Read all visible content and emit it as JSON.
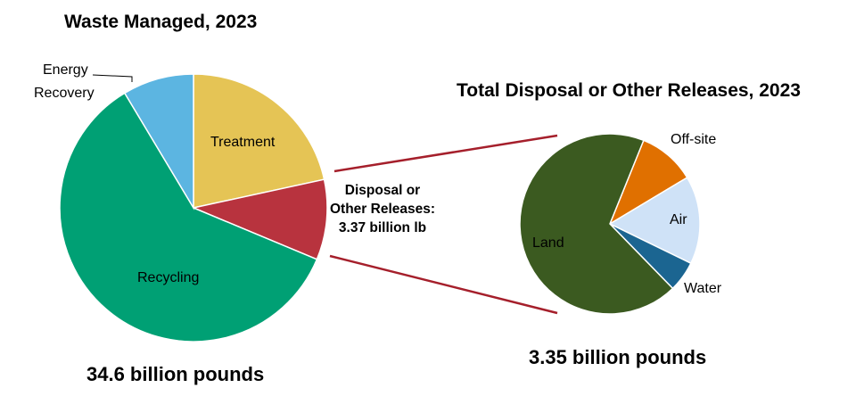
{
  "chart_data": [
    {
      "type": "pie",
      "title": "Waste Managed, 2023",
      "total_label": "34.6 billion pounds",
      "categories": [
        "Treatment",
        "Disposal or Other Releases",
        "Recycling",
        "Energy Recovery"
      ],
      "values": [
        21.6,
        9.7,
        60.1,
        8.6
      ],
      "unit": "percent of total",
      "colors": [
        "#e5c455",
        "#b8333e",
        "#00a074",
        "#5cb5e1"
      ],
      "labels": {
        "treatment": "Treatment",
        "recycling": "Recycling",
        "energy_recovery": [
          "Energy",
          "Recovery"
        ]
      },
      "callout": [
        "Disposal or",
        "Other Releases:",
        "3.37 billion lb"
      ]
    },
    {
      "type": "pie",
      "title": "Total Disposal or Other Releases, 2023",
      "total_label": "3.35 billion pounds",
      "categories": [
        "Off-site",
        "Air",
        "Water",
        "Land"
      ],
      "values": [
        10.3,
        15.8,
        5.5,
        68.4
      ],
      "unit": "percent of total",
      "colors": [
        "#e07000",
        "#cfe2f7",
        "#1b6591",
        "#3b5a20"
      ],
      "labels": {
        "off_site": "Off-site",
        "air": "Air",
        "water": "Water",
        "land": "Land"
      }
    }
  ]
}
